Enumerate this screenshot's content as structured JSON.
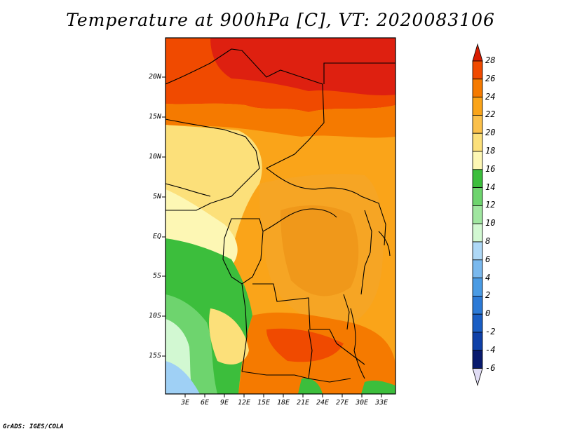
{
  "title": "Temperature at 900hPa [C], VT: 2020083106",
  "credit": "GrADS: IGES/COLA",
  "lat_labels": [
    "20N",
    "15N",
    "10N",
    "5N",
    "EQ",
    "5S",
    "10S",
    "15S"
  ],
  "lon_labels": [
    "3E",
    "6E",
    "9E",
    "12E",
    "15E",
    "18E",
    "21E",
    "24E",
    "27E",
    "30E",
    "33E"
  ],
  "colorbar": {
    "levels": [
      "28",
      "26",
      "24",
      "22",
      "20",
      "18",
      "16",
      "14",
      "12",
      "10",
      "8",
      "6",
      "4",
      "2",
      "0",
      "-2",
      "-4",
      "-6"
    ],
    "colors": [
      "#d81c00",
      "#f04a00",
      "#f57a00",
      "#faa419",
      "#fbc04a",
      "#fce07a",
      "#fdf7b4",
      "#3cbe3c",
      "#6ed46e",
      "#a0e6a0",
      "#d2f8d2",
      "#aed8f6",
      "#7ab9ee",
      "#4a9be4",
      "#2c7ad6",
      "#1a5ec4",
      "#0f40a8",
      "#081a6e",
      "#e0dcf4"
    ]
  },
  "regions": {
    "north_hot": "#de2010",
    "ocean_cool": "#9fd0f5",
    "ocean_green": "#3cbe3c"
  }
}
